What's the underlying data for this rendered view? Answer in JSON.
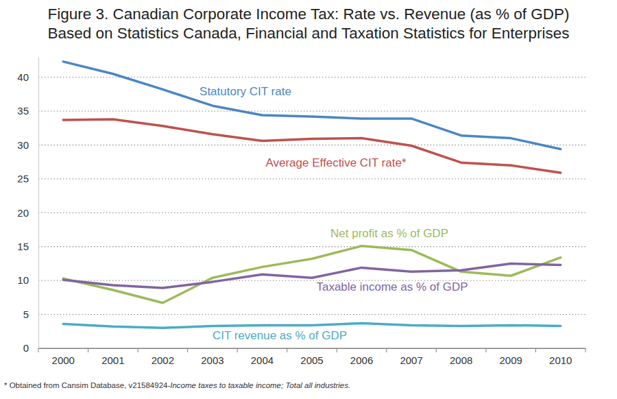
{
  "chart_data": {
    "type": "line",
    "title": "Figure 3. Canadian Corporate Income Tax: Rate vs. Revenue (as % of GDP)",
    "subtitle": "Based on Statistics Canada, Financial and Taxation Statistics for Enterprises",
    "footnote": [
      "* Obtained from Cansim Database, v21584924-",
      "Income taxes to taxable income; Total all industries."
    ],
    "categories": [
      "2000",
      "2001",
      "2002",
      "2003",
      "2004",
      "2005",
      "2006",
      "2007",
      "2008",
      "2009",
      "2010"
    ],
    "series": [
      {
        "name": "Statutory CIT rate",
        "color": "#4a86c5",
        "values": [
          42.3,
          40.5,
          38.2,
          35.8,
          34.4,
          34.2,
          33.9,
          33.9,
          31.4,
          31.0,
          29.4
        ]
      },
      {
        "name": "Average Effective CIT rate*",
        "color": "#c0504d",
        "values": [
          33.7,
          33.8,
          32.8,
          31.6,
          30.6,
          30.9,
          31.0,
          29.9,
          27.4,
          27.0,
          25.9
        ]
      },
      {
        "name": "Net profit as % of GDP",
        "color": "#9bbb59",
        "values": [
          10.3,
          8.6,
          6.7,
          10.4,
          12.0,
          13.2,
          15.1,
          14.5,
          11.3,
          10.7,
          13.4
        ]
      },
      {
        "name": "Taxable income as % of GDP",
        "color": "#8064a2",
        "values": [
          10.1,
          9.3,
          8.9,
          9.8,
          10.9,
          10.4,
          11.9,
          11.3,
          11.5,
          12.5,
          12.3
        ]
      },
      {
        "name": "CIT revenue as % of GDP",
        "color": "#4bacc6",
        "values": [
          3.6,
          3.2,
          3.0,
          3.3,
          3.4,
          3.4,
          3.7,
          3.4,
          3.3,
          3.4,
          3.3
        ]
      }
    ],
    "ylim": [
      0,
      43
    ],
    "yticks": [
      0,
      5,
      10,
      15,
      20,
      25,
      30,
      35,
      40
    ],
    "grid": true
  }
}
